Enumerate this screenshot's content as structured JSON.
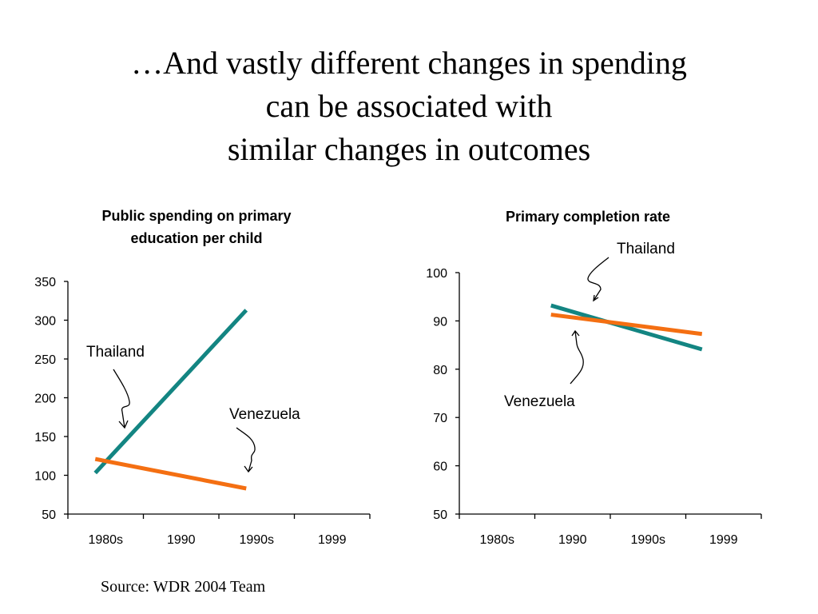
{
  "slide": {
    "title_lines": [
      "…And vastly different changes in spending",
      "can be associated with",
      "similar changes in outcomes"
    ],
    "source": "Source: WDR 2004 Team"
  },
  "colors": {
    "thailand": "#138582",
    "venezuela": "#f46f12"
  },
  "chart_data": [
    {
      "type": "line",
      "title_lines": [
        "Public spending on primary",
        "education per child"
      ],
      "categories": [
        "1980s",
        "1990",
        "1990s",
        "1999"
      ],
      "ylim": [
        50,
        350
      ],
      "yticks": [
        50,
        100,
        150,
        200,
        250,
        300,
        350
      ],
      "series": [
        {
          "name": "Thailand",
          "color": "#138582",
          "x": [
            "1980s",
            "1990s"
          ],
          "values": [
            103,
            313
          ]
        },
        {
          "name": "Venezuela",
          "color": "#f46f12",
          "x": [
            "1980s",
            "1990s"
          ],
          "values": [
            121,
            83
          ]
        }
      ],
      "annotations": [
        "Thailand",
        "Venezuela"
      ]
    },
    {
      "type": "line",
      "title_lines": [
        "Primary completion rate"
      ],
      "categories": [
        "1980s",
        "1990",
        "1990s",
        "1999"
      ],
      "ylim": [
        50,
        100
      ],
      "yticks": [
        50,
        60,
        70,
        80,
        90,
        100
      ],
      "series": [
        {
          "name": "Thailand",
          "color": "#138582",
          "x": [
            "1990",
            "1999"
          ],
          "values": [
            93.2,
            84.1
          ]
        },
        {
          "name": "Venezuela",
          "color": "#f46f12",
          "x": [
            "1990",
            "1999"
          ],
          "values": [
            91.3,
            87.3
          ]
        }
      ],
      "annotations": [
        "Thailand",
        "Venezuela"
      ]
    }
  ]
}
